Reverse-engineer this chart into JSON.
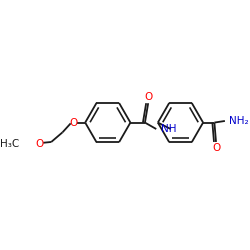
{
  "bg_color": "#ffffff",
  "line_color": "#1a1a1a",
  "oxygen_color": "#ff0000",
  "nitrogen_color": "#0000cc",
  "fig_width": 2.5,
  "fig_height": 2.5,
  "dpi": 100,
  "bond_lw": 1.3,
  "label_h3c": "H₃C",
  "label_o": "O",
  "label_nh": "NH",
  "label_nh2": "NH₂",
  "label_o_carbonyl": "O",
  "label_amide_o": "O",
  "font_size": 7.0
}
